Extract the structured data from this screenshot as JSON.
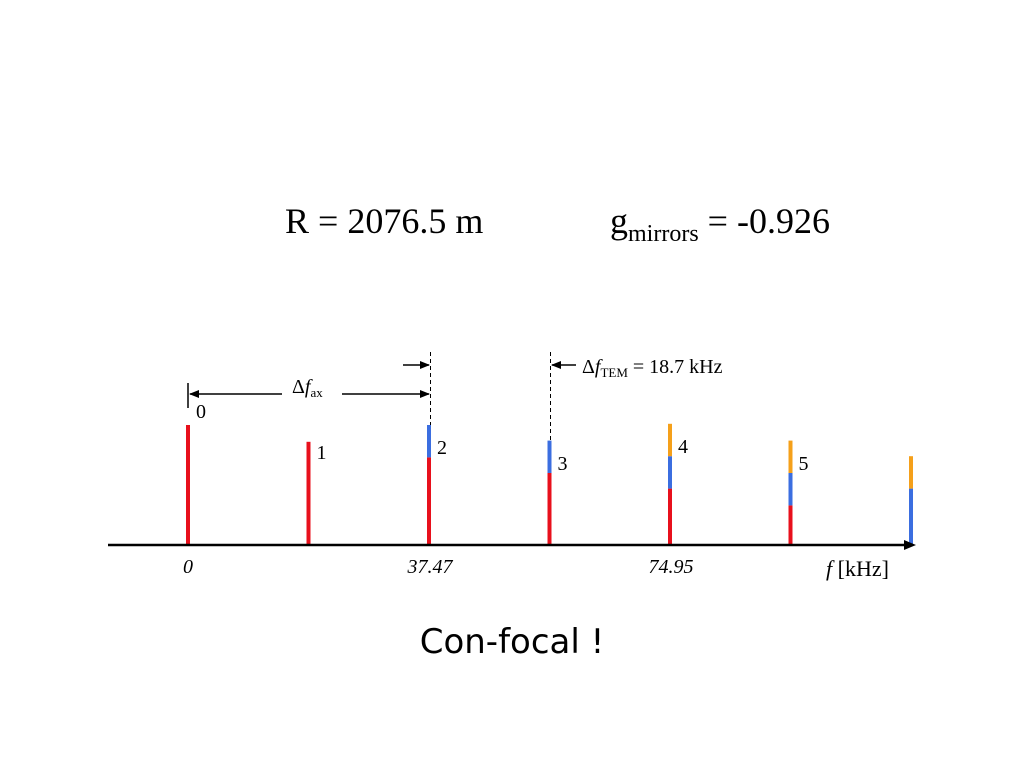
{
  "header": {
    "r_label": "R = 2076.5 m",
    "g_symbol": "g",
    "g_subscript": "mirrors",
    "g_value": " = -0.926"
  },
  "annotations": {
    "delta_f_ax": {
      "delta": "Δ",
      "f": "f",
      "sub": "ax"
    },
    "delta_f_tem": {
      "delta": "Δ",
      "f": "f",
      "sub": "TEM",
      "value": " =  18.7 kHz"
    }
  },
  "axis": {
    "label_f": "f",
    "label_unit": " [kHz]",
    "ticks": [
      "0",
      "37.47",
      "74.95"
    ]
  },
  "modes": [
    {
      "number": "0",
      "red": 1.0,
      "blue": 0.0,
      "orange": 0.0
    },
    {
      "number": "1",
      "red": 0.86,
      "blue": 0.0,
      "orange": 0.0
    },
    {
      "number": "2",
      "red": 0.73,
      "blue": 0.27,
      "orange": 0.0
    },
    {
      "number": "3",
      "red": 0.6,
      "blue": 0.27,
      "orange": 0.0
    },
    {
      "number": "4",
      "red": 0.47,
      "blue": 0.27,
      "orange": 0.27
    },
    {
      "number": "5",
      "red": 0.33,
      "blue": 0.27,
      "orange": 0.27
    },
    {
      "number": "",
      "red": 0.0,
      "blue": 0.47,
      "orange": 0.27
    }
  ],
  "colors": {
    "red": "#e8101c",
    "blue": "#3b6ee0",
    "orange": "#f5a01a",
    "axis": "#000000"
  },
  "caption": "Con-focal !"
}
